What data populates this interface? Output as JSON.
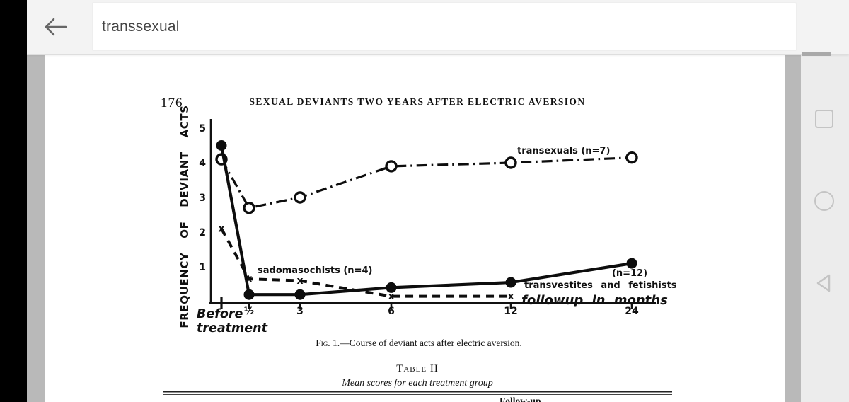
{
  "toolbar": {
    "search_query": "transsexual",
    "back_icon": "back-arrow"
  },
  "nav": {
    "icons": [
      "recents-square-icon",
      "home-circle-icon",
      "back-triangle-icon"
    ]
  },
  "page": {
    "page_number": "176",
    "running_header": "SEXUAL DEVIANTS TWO YEARS AFTER ELECTRIC AVERSION",
    "caption_fig": "Fig. 1.",
    "caption_rest": "—Course of deviant acts after electric aversion.",
    "table_title": "Table II",
    "table_subtitle": "Mean scores for each treatment group",
    "table_partial_header": "Follow-up"
  },
  "chart_data": {
    "type": "line",
    "title": "Course of deviant acts after electric aversion",
    "ylabel": "FREQUENCY OF DEVIANT ACTS",
    "xlabel": "followup in months",
    "x_axis_note_line1": "Before",
    "x_axis_note_line2": "treatment",
    "categories": [
      "Before treatment",
      "½",
      "3",
      "6",
      "12",
      "24"
    ],
    "x_tick_labels": [
      "½",
      "3",
      "6",
      "12",
      "24"
    ],
    "yticks": [
      5,
      4,
      3,
      2,
      1
    ],
    "ylim": [
      0,
      5
    ],
    "grid": false,
    "legend_position": "inline-annotations",
    "series": [
      {
        "name": "transexuals (n=7)",
        "label": "transexuals (n=7)",
        "marker": "open-circle",
        "line": "dash-dot",
        "values": [
          4.1,
          2.7,
          3.0,
          3.9,
          4.0,
          4.15
        ]
      },
      {
        "name": "transvestites and fetishists (n=12)",
        "label_n": "(n=12)",
        "label": "transvestites and fetishists",
        "marker": "filled-circle",
        "line": "solid",
        "values": [
          4.5,
          0.2,
          0.2,
          0.4,
          0.55,
          1.1
        ]
      },
      {
        "name": "sadomasochists (n=4)",
        "label": "sadomasochists (n=4)",
        "marker": "x",
        "line": "dashed",
        "values": [
          2.1,
          0.65,
          0.6,
          0.15,
          0.15,
          null
        ]
      }
    ]
  }
}
